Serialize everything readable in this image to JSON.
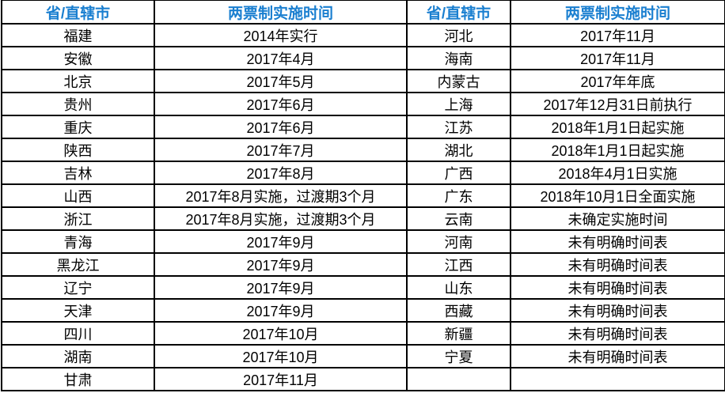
{
  "header_color": "#1a7fd0",
  "headers": [
    "省/直辖市",
    "两票制实施时间",
    "省/直辖市",
    "两票制实施时间"
  ],
  "rows": [
    [
      "福建",
      "2014年实行",
      "河北",
      "2017年11月"
    ],
    [
      "安徽",
      "2017年4月",
      "海南",
      "2017年11月"
    ],
    [
      "北京",
      "2017年5月",
      "内蒙古",
      "2017年年底"
    ],
    [
      "贵州",
      "2017年6月",
      "上海",
      "2017年12月31日前执行"
    ],
    [
      "重庆",
      "2017年6月",
      "江苏",
      "2018年1月1日起实施"
    ],
    [
      "陕西",
      "2017年7月",
      "湖北",
      "2018年1月1日起实施"
    ],
    [
      "吉林",
      "2017年8月",
      "广西",
      "2018年4月1日实施"
    ],
    [
      "山西",
      "2017年8月实施，过渡期3个月",
      "广东",
      "2018年10月1日全面实施"
    ],
    [
      "浙江",
      "2017年8月实施，过渡期3个月",
      "云南",
      "未确定实施时间"
    ],
    [
      "青海",
      "2017年9月",
      "河南",
      "未有明确时间表"
    ],
    [
      "黑龙江",
      "2017年9月",
      "江西",
      "未有明确时间表"
    ],
    [
      "辽宁",
      "2017年9月",
      "山东",
      "未有明确时间表"
    ],
    [
      "天津",
      "2017年9月",
      "西藏",
      "未有明确时间表"
    ],
    [
      "四川",
      "2017年10月",
      "新疆",
      "未有明确时间表"
    ],
    [
      "湖南",
      "2017年10月",
      "宁夏",
      "未有明确时间表"
    ],
    [
      "甘肃",
      "2017年11月",
      "",
      ""
    ]
  ]
}
